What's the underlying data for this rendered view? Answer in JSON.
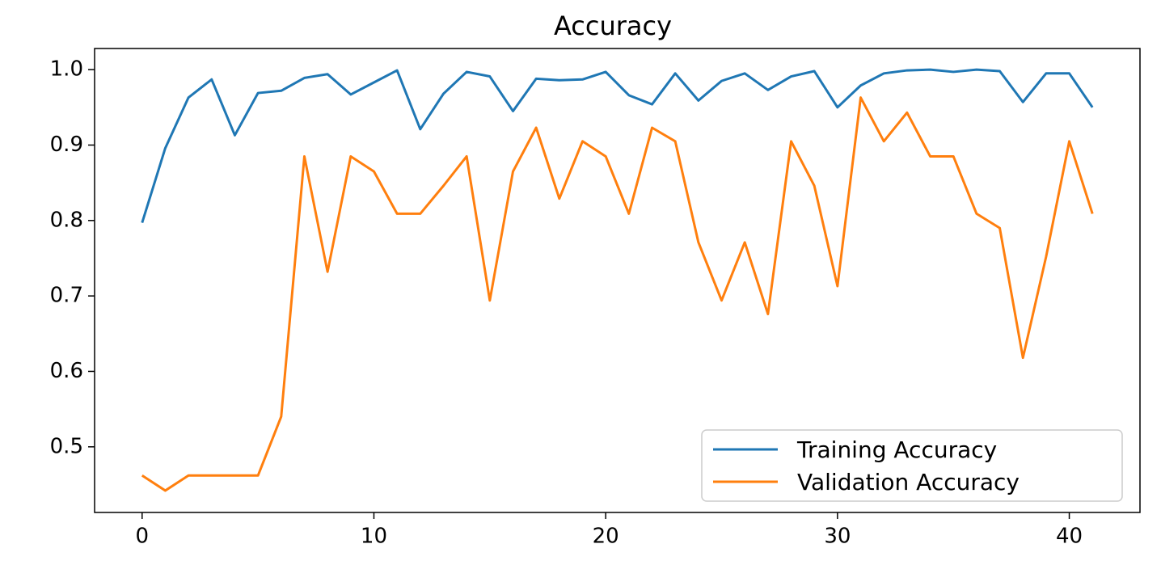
{
  "chart_data": {
    "type": "line",
    "title": "Accuracy",
    "x": [
      0,
      1,
      2,
      3,
      4,
      5,
      6,
      7,
      8,
      9,
      10,
      11,
      12,
      13,
      14,
      15,
      16,
      17,
      18,
      19,
      20,
      21,
      22,
      23,
      24,
      25,
      26,
      27,
      28,
      29,
      30,
      31,
      32,
      33,
      34,
      35,
      36,
      37,
      38,
      39,
      40,
      41
    ],
    "series": [
      {
        "name": "Training Accuracy",
        "color": "#1f77b4",
        "values": [
          0.797,
          0.896,
          0.963,
          0.987,
          0.913,
          0.969,
          0.972,
          0.989,
          0.994,
          0.967,
          0.983,
          0.999,
          0.921,
          0.968,
          0.997,
          0.991,
          0.945,
          0.988,
          0.986,
          0.987,
          0.997,
          0.966,
          0.954,
          0.995,
          0.959,
          0.985,
          0.995,
          0.973,
          0.991,
          0.998,
          0.95,
          0.979,
          0.995,
          0.999,
          1.0,
          0.997,
          1.0,
          0.998,
          0.957,
          0.995,
          0.995,
          0.95
        ]
      },
      {
        "name": "Validation Accuracy",
        "color": "#ff7f0e",
        "values": [
          0.462,
          0.442,
          0.462,
          0.462,
          0.462,
          0.462,
          0.54,
          0.885,
          0.732,
          0.885,
          0.865,
          0.809,
          0.809,
          0.846,
          0.885,
          0.694,
          0.865,
          0.923,
          0.829,
          0.905,
          0.885,
          0.809,
          0.923,
          0.905,
          0.771,
          0.694,
          0.771,
          0.676,
          0.905,
          0.846,
          0.713,
          0.963,
          0.905,
          0.943,
          0.885,
          0.885,
          0.809,
          0.79,
          0.618,
          0.752,
          0.905,
          0.809
        ]
      }
    ],
    "xlim": [
      -2.05,
      43.05
    ],
    "ylim": [
      0.413,
      1.028
    ],
    "xticks": [
      0,
      10,
      20,
      30,
      40
    ],
    "yticks": [
      0.5,
      0.6,
      0.7,
      0.8,
      0.9,
      {
        "value": 1,
        "label": "1.0"
      }
    ],
    "legend": "lower right"
  }
}
